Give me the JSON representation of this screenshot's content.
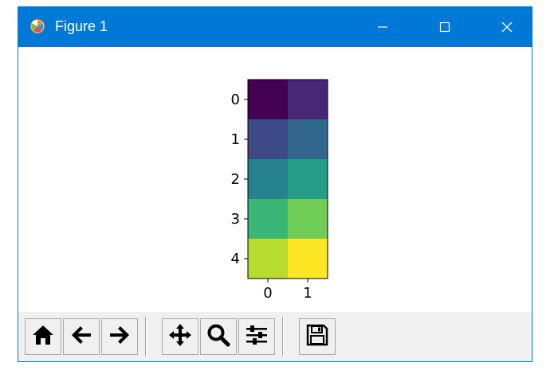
{
  "window": {
    "title": "Figure 1",
    "titlebar_color": "#0078d7",
    "app_icon": "matplotlib-logo-icon",
    "controls": [
      "minimize-icon",
      "maximize-icon",
      "close-icon"
    ]
  },
  "chart_data": {
    "type": "heatmap",
    "colormap": "viridis",
    "rows": [
      0,
      1,
      2,
      3,
      4
    ],
    "cols": [
      0,
      1
    ],
    "values": [
      [
        0,
        1
      ],
      [
        2,
        3
      ],
      [
        4,
        5
      ],
      [
        6,
        7
      ],
      [
        8,
        9
      ]
    ],
    "vmin": 0,
    "vmax": 9,
    "x_ticks": [
      "0",
      "1"
    ],
    "y_ticks": [
      "0",
      "1",
      "2",
      "3",
      "4"
    ],
    "title": "",
    "xlabel": "",
    "ylabel": ""
  },
  "toolbar": {
    "buttons": [
      {
        "name": "home-button",
        "icon": "home-icon"
      },
      {
        "name": "back-button",
        "icon": "arrow-left-icon"
      },
      {
        "name": "forward-button",
        "icon": "arrow-right-icon"
      },
      {
        "name": "pan-button",
        "icon": "move-icon"
      },
      {
        "name": "zoom-button",
        "icon": "magnifier-icon"
      },
      {
        "name": "configure-subplots-button",
        "icon": "sliders-icon"
      },
      {
        "name": "save-button",
        "icon": "floppy-disk-icon"
      }
    ]
  }
}
